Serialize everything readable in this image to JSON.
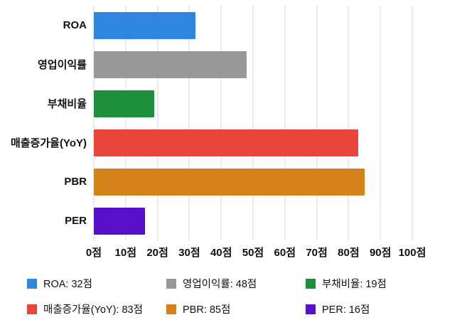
{
  "chart_data": {
    "type": "bar",
    "orientation": "horizontal",
    "title": "",
    "xlabel": "",
    "ylabel": "",
    "unit": "점",
    "xlim": [
      0,
      100
    ],
    "grid": true,
    "legend_position": "bottom",
    "categories": [
      "ROA",
      "영업이익률",
      "부채비율",
      "매출증가율(YoY)",
      "PBR",
      "PER"
    ],
    "values": [
      32,
      48,
      19,
      83,
      85,
      16
    ],
    "colors": [
      "#2E86DE",
      "#999999",
      "#1E8E3E",
      "#E8463A",
      "#D4821A",
      "#5A10C8"
    ],
    "x_ticks": [
      0,
      10,
      20,
      30,
      40,
      50,
      60,
      70,
      80,
      90,
      100
    ],
    "x_tick_labels": [
      "0점",
      "10점",
      "20점",
      "30점",
      "40점",
      "50점",
      "60점",
      "70점",
      "80점",
      "90점",
      "100점"
    ],
    "legend_items": [
      {
        "label": "ROA: 32점",
        "color": "#2E86DE"
      },
      {
        "label": "영업이익률: 48점",
        "color": "#999999"
      },
      {
        "label": "부채비율: 19점",
        "color": "#1E8E3E"
      },
      {
        "label": "매출증가율(YoY): 83점",
        "color": "#E8463A"
      },
      {
        "label": "PBR: 85점",
        "color": "#D4821A"
      },
      {
        "label": "PER: 16점",
        "color": "#5A10C8"
      }
    ]
  }
}
